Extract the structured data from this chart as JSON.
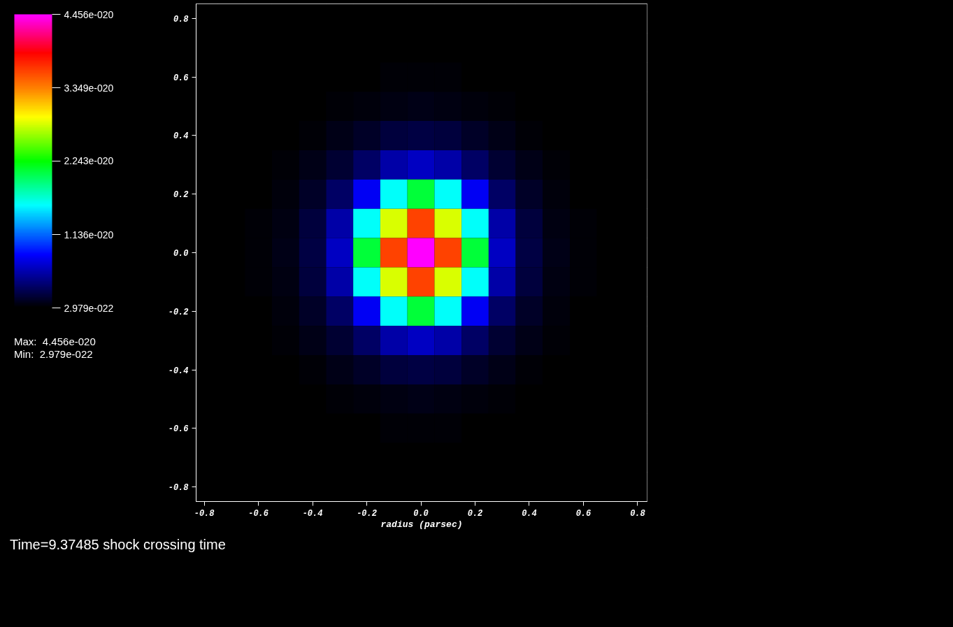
{
  "chart_data": {
    "type": "heatmap",
    "xlabel": "radius (parsec)",
    "x": [
      -0.8,
      -0.7,
      -0.6,
      -0.5,
      -0.4,
      -0.3,
      -0.2,
      -0.1,
      0,
      0.1,
      0.2,
      0.3,
      0.4,
      0.5,
      0.6,
      0.7,
      0.8
    ],
    "y_categories": [
      "0.8",
      null,
      "0.6",
      null,
      "0.4",
      null,
      "0.2",
      null,
      "0.0",
      null,
      "-0.2",
      null,
      "-0.4",
      null,
      "-0.6",
      null,
      "-0.8"
    ],
    "cells": [
      [
        3e-22,
        3e-22,
        3e-22,
        3e-22,
        3e-22,
        3e-22,
        3e-22,
        3e-22,
        3e-22,
        3e-22,
        3e-22,
        3e-22,
        3e-22,
        3e-22,
        3e-22,
        3e-22,
        3e-22
      ],
      [
        3e-22,
        3e-22,
        3e-22,
        3e-22,
        3e-22,
        3.1e-22,
        3.3e-22,
        3.5e-22,
        3.5e-22,
        3.5e-22,
        3.3e-22,
        3.1e-22,
        3e-22,
        3e-22,
        3e-22,
        3e-22,
        3e-22
      ],
      [
        3e-22,
        3e-22,
        3e-22,
        3.1e-22,
        3.4e-22,
        3.8e-22,
        4.3e-22,
        4.8e-22,
        5e-22,
        4.8e-22,
        4.3e-22,
        3.8e-22,
        3.4e-22,
        3.1e-22,
        3e-22,
        3e-22,
        3e-22
      ],
      [
        3e-22,
        3e-22,
        3.1e-22,
        3.5e-22,
        4.2e-22,
        5.5e-22,
        8e-22,
        9e-22,
        1e-21,
        9e-22,
        8e-22,
        5.5e-22,
        4.2e-22,
        3.5e-22,
        3.1e-22,
        3e-22,
        3e-22
      ],
      [
        3e-22,
        3e-22,
        3.4e-22,
        4.2e-22,
        6e-22,
        1e-21,
        1.6e-21,
        2.2e-21,
        2.5e-21,
        2.2e-21,
        1.6e-21,
        1e-21,
        6e-22,
        4.2e-22,
        3.4e-22,
        3e-22,
        3e-22
      ],
      [
        3e-22,
        3.1e-22,
        3.8e-22,
        5.5e-22,
        1e-21,
        2e-21,
        3.5e-21,
        5.5e-21,
        6.5e-21,
        5.5e-21,
        3.5e-21,
        2e-21,
        1e-21,
        5.5e-22,
        3.8e-22,
        3.1e-22,
        3e-22
      ],
      [
        3e-22,
        3.3e-22,
        4.3e-22,
        8e-22,
        1.6e-21,
        3.5e-21,
        8e-21,
        1.6e-20,
        2.1e-20,
        1.6e-20,
        8e-21,
        3.5e-21,
        1.6e-21,
        8e-22,
        4.3e-22,
        3.3e-22,
        3e-22
      ],
      [
        3e-22,
        3.5e-22,
        4.8e-22,
        9e-22,
        2.2e-21,
        5.5e-21,
        1.6e-20,
        2.8e-20,
        3.6e-20,
        2.8e-20,
        1.6e-20,
        5.5e-21,
        2.2e-21,
        9e-22,
        4.8e-22,
        3.5e-22,
        3e-22
      ],
      [
        3e-22,
        3.5e-22,
        5e-22,
        1e-21,
        2.5e-21,
        6.5e-21,
        2.1e-20,
        3.6e-20,
        4.45e-20,
        3.6e-20,
        2.1e-20,
        6.5e-21,
        2.5e-21,
        1e-21,
        5e-22,
        3.5e-22,
        3e-22
      ],
      [
        3e-22,
        3.5e-22,
        4.8e-22,
        9e-22,
        2.2e-21,
        5.5e-21,
        1.6e-20,
        2.8e-20,
        3.6e-20,
        2.8e-20,
        1.6e-20,
        5.5e-21,
        2.2e-21,
        9e-22,
        4.8e-22,
        3.5e-22,
        3e-22
      ],
      [
        3e-22,
        3.3e-22,
        4.3e-22,
        8e-22,
        1.6e-21,
        3.5e-21,
        8e-21,
        1.6e-20,
        2.1e-20,
        1.6e-20,
        8e-21,
        3.5e-21,
        1.6e-21,
        8e-22,
        4.3e-22,
        3.3e-22,
        3e-22
      ],
      [
        3e-22,
        3.1e-22,
        3.8e-22,
        5.5e-22,
        1e-21,
        2e-21,
        3.5e-21,
        5.5e-21,
        6.5e-21,
        5.5e-21,
        3.5e-21,
        2e-21,
        1e-21,
        5.5e-22,
        3.8e-22,
        3.1e-22,
        3e-22
      ],
      [
        3e-22,
        3e-22,
        3.4e-22,
        4.2e-22,
        6e-22,
        1e-21,
        1.6e-21,
        2.2e-21,
        2.5e-21,
        2.2e-21,
        1.6e-21,
        1e-21,
        6e-22,
        4.2e-22,
        3.4e-22,
        3e-22,
        3e-22
      ],
      [
        3e-22,
        3e-22,
        3.1e-22,
        3.5e-22,
        4.2e-22,
        5.5e-22,
        8e-22,
        9e-22,
        1e-21,
        9e-22,
        8e-22,
        5.5e-22,
        4.2e-22,
        3.5e-22,
        3.1e-22,
        3e-22,
        3e-22
      ],
      [
        3e-22,
        3e-22,
        3e-22,
        3.1e-22,
        3.4e-22,
        3.8e-22,
        4.3e-22,
        4.8e-22,
        5e-22,
        4.8e-22,
        4.3e-22,
        3.8e-22,
        3.4e-22,
        3.1e-22,
        3e-22,
        3e-22,
        3e-22
      ],
      [
        3e-22,
        3e-22,
        3e-22,
        3e-22,
        3e-22,
        3.1e-22,
        3.3e-22,
        3.5e-22,
        3.5e-22,
        3.5e-22,
        3.3e-22,
        3.1e-22,
        3e-22,
        3e-22,
        3e-22,
        3e-22,
        3e-22
      ],
      [
        3e-22,
        3e-22,
        3e-22,
        3e-22,
        3e-22,
        3e-22,
        3e-22,
        3e-22,
        3e-22,
        3e-22,
        3e-22,
        3e-22,
        3e-22,
        3e-22,
        3e-22,
        3e-22,
        3e-22
      ]
    ],
    "clim": [
      2.979e-22,
      4.456e-20
    ],
    "cticks": [
      {
        "value": 2.979e-22,
        "label": "2.979e-022"
      },
      {
        "value": 1.136e-20,
        "label": "1.136e-020"
      },
      {
        "value": 2.243e-20,
        "label": "2.243e-020"
      },
      {
        "value": 3.349e-20,
        "label": "3.349e-020"
      },
      {
        "value": 4.456e-20,
        "label": "4.456e-020"
      }
    ],
    "xlim": [
      -0.83,
      0.835
    ],
    "xticks": [
      {
        "value": -0.8,
        "label": "-0.8"
      },
      {
        "value": -0.6,
        "label": "-0.6"
      },
      {
        "value": -0.4,
        "label": "-0.4"
      },
      {
        "value": -0.2,
        "label": "-0.2"
      },
      {
        "value": 0,
        "label": "0.0"
      },
      0.2,
      0.4,
      0.6,
      0.8
    ],
    "grid": false,
    "annotations": [
      "Max:  4.456e-020",
      "Min:  2.979e-022",
      "Time=9.37485 shock crossing time"
    ]
  }
}
